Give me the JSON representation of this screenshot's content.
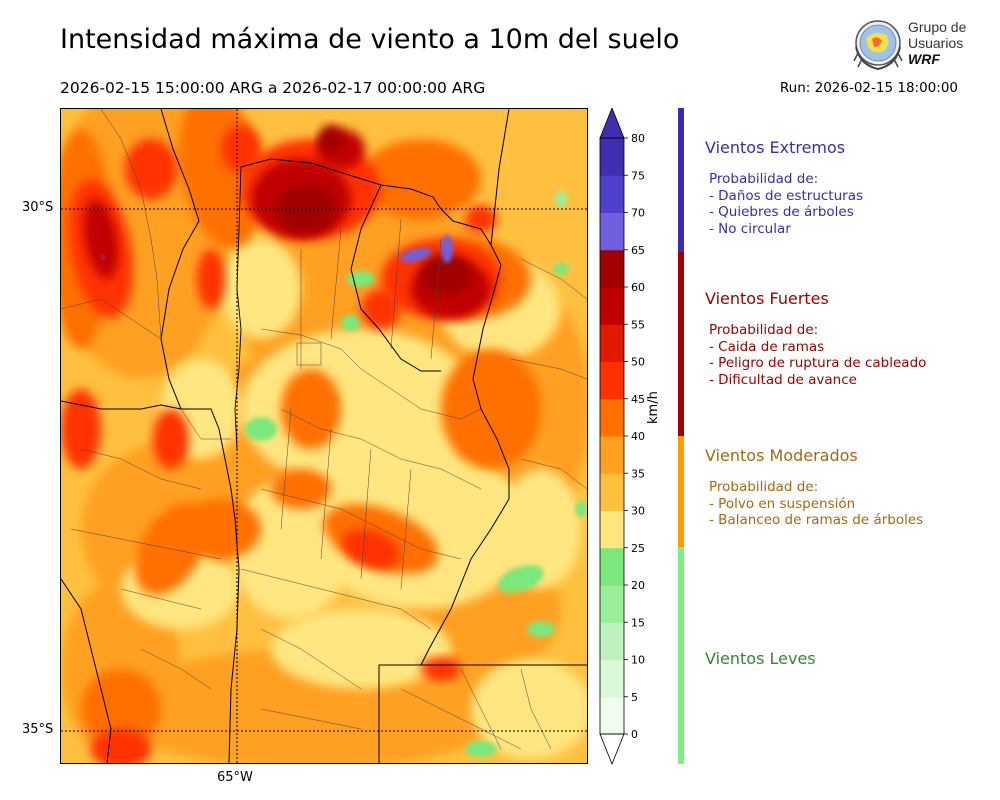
{
  "title": "Intensidad máxima de viento a 10m del suelo",
  "period": "2026-02-15 15:00:00 ARG  a  2026-02-17 00:00:00 ARG",
  "run": "Run: 2026-02-15 18:00:00",
  "logo": {
    "line1": "Grupo de",
    "line2": "Usuarios",
    "line3": "WRF"
  },
  "map": {
    "lat_labels": [
      "30°S",
      "35°S"
    ],
    "lon_labels": [
      "65°W"
    ]
  },
  "colorbar": {
    "unit": "km/h",
    "ticks": [
      "0",
      "5",
      "10",
      "15",
      "20",
      "25",
      "30",
      "35",
      "40",
      "45",
      "50",
      "55",
      "60",
      "65",
      "70",
      "75",
      "80"
    ],
    "colors": [
      "#effcef",
      "#d8f8d8",
      "#bdf2bd",
      "#9bef9b",
      "#7ce77c",
      "#ffe680",
      "#ffc040",
      "#ffa020",
      "#ff7000",
      "#ff3000",
      "#e01a00",
      "#c00000",
      "#a00000",
      "#7060e0",
      "#5040d0",
      "#3d2fb0"
    ],
    "over_color": "#3d2fb0",
    "under_color": "#ffffff"
  },
  "categories": [
    {
      "title": "Vientos Extremos",
      "intro": "Probabilidad de:",
      "items": [
        "- Daños de estructuras",
        "- Quiebres de árboles",
        "- No circular"
      ],
      "color": "#3a2bb0",
      "bar_color": "#3a2bb0"
    },
    {
      "title": "Vientos Fuertes",
      "intro": "Probabilidad de:",
      "items": [
        "- Caida de ramas",
        "- Peligro de ruptura de cableado",
        "- Dificultad de avance"
      ],
      "color": "#a00000",
      "bar_color": "#a00000"
    },
    {
      "title": "Vientos Moderados",
      "intro": "Probabilidad de:",
      "items": [
        "- Polvo en suspensión",
        "- Balanceo de ramas de árboles"
      ],
      "color": "#a06a10",
      "bar_color": "#ff9a00"
    },
    {
      "title": "Vientos Leves",
      "intro": "",
      "items": [],
      "color": "#2e8b2e",
      "bar_color": "#7ef07e"
    }
  ]
}
